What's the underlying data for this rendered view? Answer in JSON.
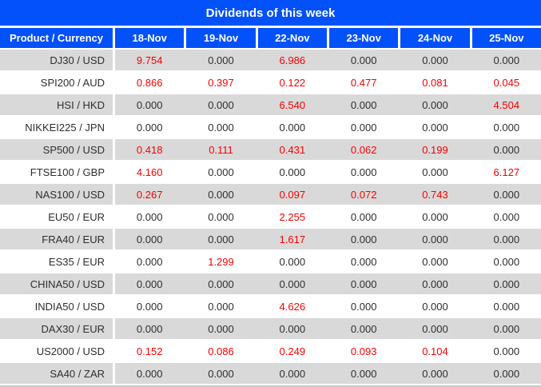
{
  "colors": {
    "header_blue": "#0351fb",
    "row_gray": "#d9d9d9",
    "row_white": "#ffffff",
    "value_red": "#fa0000",
    "value_black": "#2e2e2e",
    "header_text": "#ffffff"
  },
  "chart_data": {
    "type": "table",
    "title": "Dividends of this week",
    "columns": [
      "Product / Currency",
      "18-Nov",
      "19-Nov",
      "22-Nov",
      "23-Nov",
      "24-Nov",
      "25-Nov"
    ],
    "rows": [
      {
        "product": "DJ30 / USD",
        "values": [
          "9.754",
          "0.000",
          "6.986",
          "0.000",
          "0.000",
          "0.000"
        ]
      },
      {
        "product": "SPI200 / AUD",
        "values": [
          "0.866",
          "0.397",
          "0.122",
          "0.477",
          "0.081",
          "0.045"
        ]
      },
      {
        "product": "HSI / HKD",
        "values": [
          "0.000",
          "0.000",
          "6.540",
          "0.000",
          "0.000",
          "4.504"
        ]
      },
      {
        "product": "NIKKEI225 / JPN",
        "values": [
          "0.000",
          "0.000",
          "0.000",
          "0.000",
          "0.000",
          "0.000"
        ]
      },
      {
        "product": "SP500 / USD",
        "values": [
          "0.418",
          "0.111",
          "0.431",
          "0.062",
          "0.199",
          "0.000"
        ]
      },
      {
        "product": "FTSE100 / GBP",
        "values": [
          "4.160",
          "0.000",
          "0.000",
          "0.000",
          "0.000",
          "6.127"
        ]
      },
      {
        "product": "NAS100 / USD",
        "values": [
          "0.267",
          "0.000",
          "0.097",
          "0.072",
          "0.743",
          "0.000"
        ]
      },
      {
        "product": "EU50 / EUR",
        "values": [
          "0.000",
          "0.000",
          "2.255",
          "0.000",
          "0.000",
          "0.000"
        ]
      },
      {
        "product": "FRA40 / EUR",
        "values": [
          "0.000",
          "0.000",
          "1.617",
          "0.000",
          "0.000",
          "0.000"
        ]
      },
      {
        "product": "ES35 / EUR",
        "values": [
          "0.000",
          "1.299",
          "0.000",
          "0.000",
          "0.000",
          "0.000"
        ]
      },
      {
        "product": "CHINA50 / USD",
        "values": [
          "0.000",
          "0.000",
          "0.000",
          "0.000",
          "0.000",
          "0.000"
        ]
      },
      {
        "product": "INDIA50 / USD",
        "values": [
          "0.000",
          "0.000",
          "4.626",
          "0.000",
          "0.000",
          "0.000"
        ]
      },
      {
        "product": "DAX30 / EUR",
        "values": [
          "0.000",
          "0.000",
          "0.000",
          "0.000",
          "0.000",
          "0.000"
        ]
      },
      {
        "product": "US2000 / USD",
        "values": [
          "0.152",
          "0.086",
          "0.249",
          "0.093",
          "0.104",
          "0.000"
        ]
      },
      {
        "product": "SA40 / ZAR",
        "values": [
          "0.000",
          "0.000",
          "0.000",
          "0.000",
          "0.000",
          "0.000"
        ]
      }
    ]
  }
}
